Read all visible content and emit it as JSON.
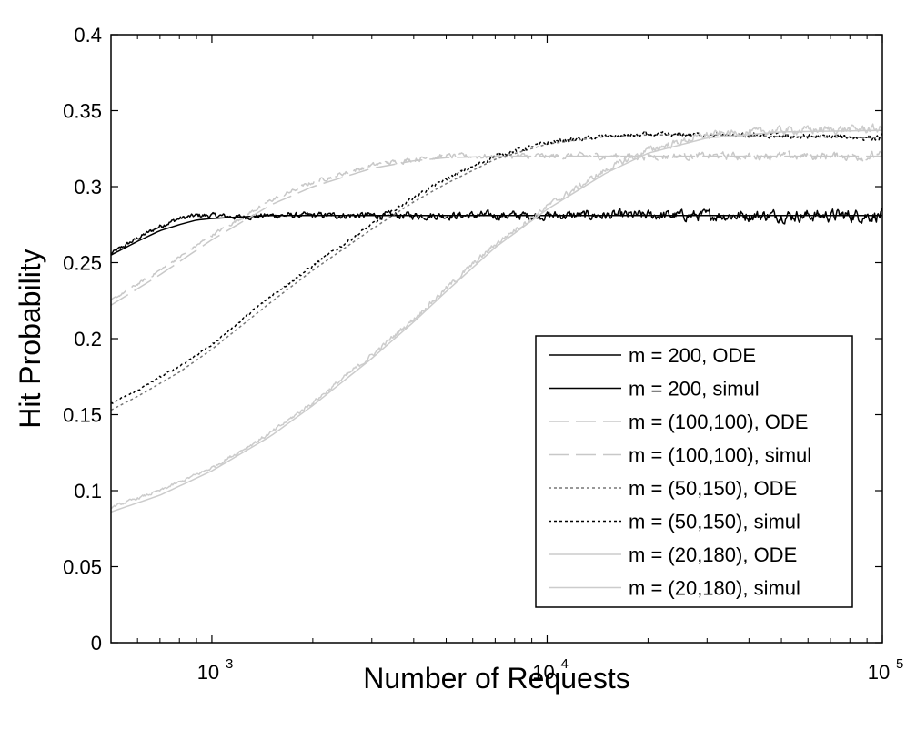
{
  "chart_data": {
    "type": "line",
    "xlabel": "Number of Requests",
    "ylabel": "Hit Probability",
    "xscale": "log",
    "xlim": [
      500,
      100000
    ],
    "ylim": [
      0,
      0.4
    ],
    "x_ticks": [
      1000,
      10000,
      100000
    ],
    "x_tick_labels": [
      {
        "base": "10",
        "exp": "3"
      },
      {
        "base": "10",
        "exp": "4"
      },
      {
        "base": "10",
        "exp": "5"
      }
    ],
    "y_ticks": [
      0,
      0.05,
      0.1,
      0.15,
      0.2,
      0.25,
      0.3,
      0.35,
      0.4
    ],
    "y_tick_labels": [
      "0",
      "0.05",
      "0.1",
      "0.15",
      "0.2",
      "0.25",
      "0.3",
      "0.35",
      "0.4"
    ],
    "grid": false,
    "legend_position": "lower-right",
    "series": [
      {
        "name": "m = 200, ODE",
        "color": "#000000",
        "dash": "solid",
        "noise": 0,
        "x": [
          500,
          600,
          700,
          800,
          900,
          1000,
          1200,
          1500,
          2000,
          3000,
          5000,
          10000,
          20000,
          50000,
          100000
        ],
        "y": [
          0.255,
          0.264,
          0.271,
          0.275,
          0.278,
          0.279,
          0.28,
          0.281,
          0.281,
          0.281,
          0.281,
          0.281,
          0.281,
          0.281,
          0.281
        ]
      },
      {
        "name": "m = 200, simul",
        "color": "#000000",
        "dash": "solid",
        "noise": 0.006,
        "x": [
          500,
          600,
          700,
          800,
          900,
          1000,
          1200,
          1500,
          2000,
          3000,
          5000,
          10000,
          20000,
          50000,
          100000
        ],
        "y": [
          0.256,
          0.266,
          0.274,
          0.279,
          0.281,
          0.281,
          0.28,
          0.281,
          0.281,
          0.281,
          0.281,
          0.281,
          0.281,
          0.281,
          0.281
        ]
      },
      {
        "name": "m = (100,100), ODE",
        "color": "#c8c8c8",
        "dash": "22 8",
        "noise": 0,
        "x": [
          500,
          700,
          1000,
          1500,
          2000,
          3000,
          4000,
          5000,
          7000,
          10000,
          20000,
          50000,
          100000
        ],
        "y": [
          0.222,
          0.242,
          0.265,
          0.288,
          0.3,
          0.312,
          0.317,
          0.319,
          0.32,
          0.32,
          0.32,
          0.32,
          0.32
        ]
      },
      {
        "name": "m = (100,100), simul",
        "color": "#c8c8c8",
        "dash": "22 8",
        "noise": 0.004,
        "x": [
          500,
          700,
          1000,
          1500,
          2000,
          3000,
          4000,
          5000,
          7000,
          10000,
          20000,
          50000,
          100000
        ],
        "y": [
          0.225,
          0.245,
          0.268,
          0.291,
          0.303,
          0.314,
          0.318,
          0.32,
          0.32,
          0.32,
          0.32,
          0.32,
          0.32
        ]
      },
      {
        "name": "m = (50,150), ODE",
        "color": "#777777",
        "dash": "3 3",
        "noise": 0,
        "x": [
          500,
          600,
          800,
          1000,
          1500,
          2000,
          3000,
          4000,
          5000,
          7000,
          10000,
          15000,
          20000,
          30000,
          50000,
          100000
        ],
        "y": [
          0.153,
          0.162,
          0.178,
          0.193,
          0.224,
          0.245,
          0.272,
          0.29,
          0.302,
          0.318,
          0.328,
          0.333,
          0.334,
          0.334,
          0.333,
          0.332
        ]
      },
      {
        "name": "m = (50,150), simul",
        "color": "#000000",
        "dash": "3 3",
        "noise": 0.003,
        "x": [
          500,
          600,
          800,
          1000,
          1500,
          2000,
          3000,
          4000,
          5000,
          7000,
          10000,
          15000,
          20000,
          30000,
          50000,
          100000
        ],
        "y": [
          0.157,
          0.166,
          0.182,
          0.196,
          0.228,
          0.248,
          0.275,
          0.293,
          0.305,
          0.32,
          0.329,
          0.333,
          0.334,
          0.334,
          0.333,
          0.332
        ]
      },
      {
        "name": "m = (20,180), ODE",
        "color": "#cccccc",
        "dash": "solid",
        "noise": 0,
        "x": [
          500,
          700,
          1000,
          1500,
          2000,
          3000,
          4000,
          5000,
          7000,
          10000,
          15000,
          20000,
          30000,
          50000,
          100000
        ],
        "y": [
          0.086,
          0.097,
          0.113,
          0.136,
          0.156,
          0.187,
          0.211,
          0.231,
          0.26,
          0.285,
          0.309,
          0.322,
          0.332,
          0.336,
          0.337
        ]
      },
      {
        "name": "m = (20,180), simul",
        "color": "#cccccc",
        "dash": "solid",
        "noise": 0.004,
        "x": [
          500,
          700,
          1000,
          1500,
          2000,
          3000,
          4000,
          5000,
          7000,
          10000,
          15000,
          20000,
          30000,
          50000,
          100000
        ],
        "y": [
          0.089,
          0.1,
          0.115,
          0.138,
          0.158,
          0.189,
          0.213,
          0.233,
          0.262,
          0.287,
          0.311,
          0.324,
          0.334,
          0.337,
          0.338
        ]
      }
    ]
  }
}
